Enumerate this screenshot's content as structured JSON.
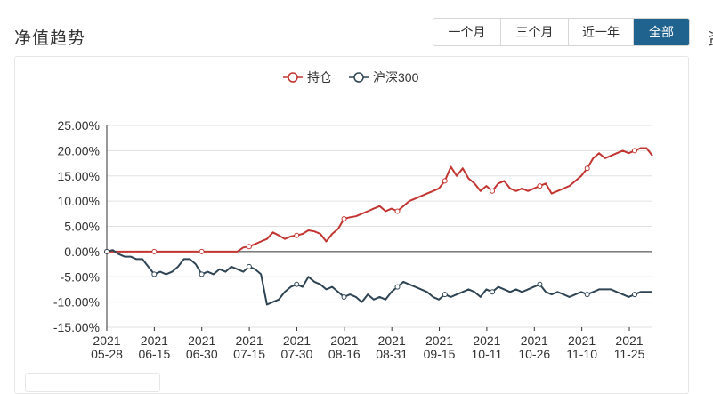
{
  "header": {
    "title": "净值趋势",
    "edge_glyph": "资"
  },
  "range_tabs": [
    {
      "label": "一个月",
      "active": false
    },
    {
      "label": "三个月",
      "active": false
    },
    {
      "label": "近一年",
      "active": false
    },
    {
      "label": "全部",
      "active": true
    }
  ],
  "colors": {
    "holding": "#c23531",
    "index": "#2f4554",
    "active_tab": "#21638f"
  },
  "chart_data": {
    "type": "line",
    "title": "",
    "xlabel": "",
    "ylabel": "",
    "ylim": [
      -15,
      25
    ],
    "yticks": [
      25,
      20,
      15,
      10,
      5,
      0,
      -5,
      -10,
      -15
    ],
    "ytick_labels": [
      "25.00%",
      "20.00%",
      "15.00%",
      "10.00%",
      "5.00%",
      "0.00%",
      "-5.00%",
      "-10.00%",
      "-15.00%"
    ],
    "xtick_labels": [
      [
        "2021",
        "05-28"
      ],
      [
        "2021",
        "06-15"
      ],
      [
        "2021",
        "06-30"
      ],
      [
        "2021",
        "07-15"
      ],
      [
        "2021",
        "07-30"
      ],
      [
        "2021",
        "08-16"
      ],
      [
        "2021",
        "08-31"
      ],
      [
        "2021",
        "09-15"
      ],
      [
        "2021",
        "10-11"
      ],
      [
        "2021",
        "10-26"
      ],
      [
        "2021",
        "11-10"
      ],
      [
        "2021",
        "11-25"
      ]
    ],
    "grid": true,
    "legend_position": "top-center",
    "series": [
      {
        "name": "持仓",
        "color": "#c23531",
        "points": [
          [
            0,
            0
          ],
          [
            1,
            0
          ],
          [
            2,
            0
          ],
          [
            3,
            0
          ],
          [
            4,
            0
          ],
          [
            5,
            0
          ],
          [
            6,
            0
          ],
          [
            7,
            0
          ],
          [
            8,
            0
          ],
          [
            9,
            0
          ],
          [
            10,
            0
          ],
          [
            11,
            0
          ],
          [
            12,
            0
          ],
          [
            13,
            0
          ],
          [
            14,
            0
          ],
          [
            15,
            0
          ],
          [
            16,
            0
          ],
          [
            17,
            0
          ],
          [
            18,
            0
          ],
          [
            19,
            0
          ],
          [
            20,
            0
          ],
          [
            21,
            0
          ],
          [
            22,
            0
          ],
          [
            23,
            0.8
          ],
          [
            24,
            1.0
          ],
          [
            25,
            1.5
          ],
          [
            26,
            2.0
          ],
          [
            27,
            2.5
          ],
          [
            28,
            3.8
          ],
          [
            29,
            3.2
          ],
          [
            30,
            2.5
          ],
          [
            31,
            3.0
          ],
          [
            32,
            3.2
          ],
          [
            33,
            3.5
          ],
          [
            34,
            4.2
          ],
          [
            35,
            4.0
          ],
          [
            36,
            3.5
          ],
          [
            37,
            2.0
          ],
          [
            38,
            3.5
          ],
          [
            39,
            4.5
          ],
          [
            40,
            6.5
          ],
          [
            41,
            6.8
          ],
          [
            42,
            7.0
          ],
          [
            43,
            7.5
          ],
          [
            44,
            8.0
          ],
          [
            45,
            8.5
          ],
          [
            46,
            9.0
          ],
          [
            47,
            8.0
          ],
          [
            48,
            8.5
          ],
          [
            49,
            8.0
          ],
          [
            50,
            9.0
          ],
          [
            51,
            10.0
          ],
          [
            52,
            10.5
          ],
          [
            53,
            11.0
          ],
          [
            54,
            11.5
          ],
          [
            55,
            12.0
          ],
          [
            56,
            12.5
          ],
          [
            57,
            14.0
          ],
          [
            58,
            16.8
          ],
          [
            59,
            15.0
          ],
          [
            60,
            16.5
          ],
          [
            61,
            14.5
          ],
          [
            62,
            13.5
          ],
          [
            63,
            12.0
          ],
          [
            64,
            13.0
          ],
          [
            65,
            12.0
          ],
          [
            66,
            13.5
          ],
          [
            67,
            14.0
          ],
          [
            68,
            12.5
          ],
          [
            69,
            12.0
          ],
          [
            70,
            12.5
          ],
          [
            71,
            12.0
          ],
          [
            72,
            12.5
          ],
          [
            73,
            13.0
          ],
          [
            74,
            13.5
          ],
          [
            75,
            11.5
          ],
          [
            76,
            12.0
          ],
          [
            77,
            12.5
          ],
          [
            78,
            13.0
          ],
          [
            79,
            14.0
          ],
          [
            80,
            15.0
          ],
          [
            81,
            16.5
          ],
          [
            82,
            18.5
          ],
          [
            83,
            19.5
          ],
          [
            84,
            18.5
          ],
          [
            85,
            19.0
          ],
          [
            86,
            19.5
          ],
          [
            87,
            20.0
          ],
          [
            88,
            19.5
          ],
          [
            89,
            20.0
          ],
          [
            90,
            20.5
          ],
          [
            91,
            20.5
          ],
          [
            92,
            19.0
          ]
        ],
        "markers": [
          0,
          8,
          16,
          24,
          32,
          40,
          49,
          57,
          65,
          73,
          81,
          89
        ]
      },
      {
        "name": "沪深300",
        "color": "#2f4554",
        "points": [
          [
            0,
            0
          ],
          [
            1,
            0.3
          ],
          [
            2,
            -0.5
          ],
          [
            3,
            -1.0
          ],
          [
            4,
            -1.0
          ],
          [
            5,
            -1.5
          ],
          [
            6,
            -1.5
          ],
          [
            7,
            -3.0
          ],
          [
            8,
            -4.5
          ],
          [
            9,
            -4.0
          ],
          [
            10,
            -4.5
          ],
          [
            11,
            -4.0
          ],
          [
            12,
            -3.0
          ],
          [
            13,
            -1.5
          ],
          [
            14,
            -1.5
          ],
          [
            15,
            -2.5
          ],
          [
            16,
            -4.5
          ],
          [
            17,
            -4.0
          ],
          [
            18,
            -4.5
          ],
          [
            19,
            -3.5
          ],
          [
            20,
            -4.0
          ],
          [
            21,
            -3.0
          ],
          [
            22,
            -3.5
          ],
          [
            23,
            -4.0
          ],
          [
            24,
            -3.0
          ],
          [
            25,
            -3.5
          ],
          [
            26,
            -4.5
          ],
          [
            27,
            -10.5
          ],
          [
            28,
            -10.0
          ],
          [
            29,
            -9.5
          ],
          [
            30,
            -8.0
          ],
          [
            31,
            -7.0
          ],
          [
            32,
            -6.5
          ],
          [
            33,
            -7.0
          ],
          [
            34,
            -5.0
          ],
          [
            35,
            -6.0
          ],
          [
            36,
            -6.5
          ],
          [
            37,
            -7.5
          ],
          [
            38,
            -7.0
          ],
          [
            39,
            -8.0
          ],
          [
            40,
            -9.0
          ],
          [
            41,
            -8.5
          ],
          [
            42,
            -9.0
          ],
          [
            43,
            -10.0
          ],
          [
            44,
            -8.5
          ],
          [
            45,
            -9.5
          ],
          [
            46,
            -9.0
          ],
          [
            47,
            -9.5
          ],
          [
            48,
            -8.0
          ],
          [
            49,
            -7.0
          ],
          [
            50,
            -6.0
          ],
          [
            51,
            -6.5
          ],
          [
            52,
            -7.0
          ],
          [
            53,
            -7.5
          ],
          [
            54,
            -8.0
          ],
          [
            55,
            -9.0
          ],
          [
            56,
            -9.5
          ],
          [
            57,
            -8.5
          ],
          [
            58,
            -9.0
          ],
          [
            59,
            -8.5
          ],
          [
            60,
            -8.0
          ],
          [
            61,
            -7.5
          ],
          [
            62,
            -8.0
          ],
          [
            63,
            -9.0
          ],
          [
            64,
            -7.5
          ],
          [
            65,
            -8.0
          ],
          [
            66,
            -7.0
          ],
          [
            67,
            -7.5
          ],
          [
            68,
            -8.0
          ],
          [
            69,
            -7.5
          ],
          [
            70,
            -8.0
          ],
          [
            71,
            -7.5
          ],
          [
            72,
            -7.0
          ],
          [
            73,
            -6.5
          ],
          [
            74,
            -8.0
          ],
          [
            75,
            -8.5
          ],
          [
            76,
            -8.0
          ],
          [
            77,
            -8.5
          ],
          [
            78,
            -9.0
          ],
          [
            79,
            -8.5
          ],
          [
            80,
            -8.0
          ],
          [
            81,
            -8.5
          ],
          [
            82,
            -8.0
          ],
          [
            83,
            -7.5
          ],
          [
            84,
            -7.5
          ],
          [
            85,
            -7.5
          ],
          [
            86,
            -8.0
          ],
          [
            87,
            -8.5
          ],
          [
            88,
            -9.0
          ],
          [
            89,
            -8.5
          ],
          [
            90,
            -8.0
          ],
          [
            91,
            -8.0
          ],
          [
            92,
            -8.0
          ]
        ],
        "markers": [
          0,
          8,
          16,
          24,
          32,
          40,
          49,
          57,
          65,
          73,
          81,
          89
        ]
      }
    ]
  }
}
